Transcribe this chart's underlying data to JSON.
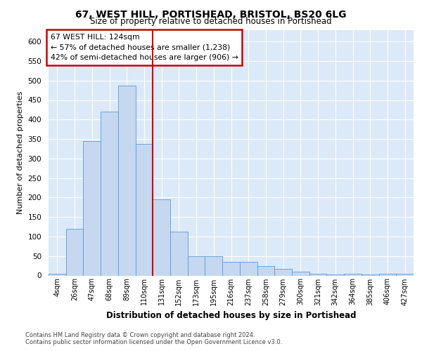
{
  "title1": "67, WEST HILL, PORTISHEAD, BRISTOL, BS20 6LG",
  "title2": "Size of property relative to detached houses in Portishead",
  "xlabel": "Distribution of detached houses by size in Portishead",
  "ylabel": "Number of detached properties",
  "categories": [
    "4sqm",
    "26sqm",
    "47sqm",
    "68sqm",
    "89sqm",
    "110sqm",
    "131sqm",
    "152sqm",
    "173sqm",
    "195sqm",
    "216sqm",
    "237sqm",
    "258sqm",
    "279sqm",
    "300sqm",
    "321sqm",
    "342sqm",
    "364sqm",
    "385sqm",
    "406sqm",
    "427sqm"
  ],
  "values": [
    5,
    120,
    345,
    420,
    487,
    337,
    195,
    112,
    50,
    50,
    35,
    35,
    25,
    18,
    10,
    5,
    3,
    5,
    2,
    5,
    5
  ],
  "bar_color": "#c5d8f0",
  "bar_edge_color": "#5b9bd5",
  "vline_x": 5.5,
  "vline_color": "#cc0000",
  "annotation_text": "67 WEST HILL: 124sqm\n← 57% of detached houses are smaller (1,238)\n42% of semi-detached houses are larger (906) →",
  "annotation_box_color": "#ffffff",
  "annotation_box_edge": "#cc0000",
  "ylim": [
    0,
    630
  ],
  "yticks": [
    0,
    50,
    100,
    150,
    200,
    250,
    300,
    350,
    400,
    450,
    500,
    550,
    600
  ],
  "footer_line1": "Contains HM Land Registry data © Crown copyright and database right 2024.",
  "footer_line2": "Contains public sector information licensed under the Open Government Licence v3.0.",
  "bg_color": "#dce9f8",
  "grid_color": "#ffffff"
}
